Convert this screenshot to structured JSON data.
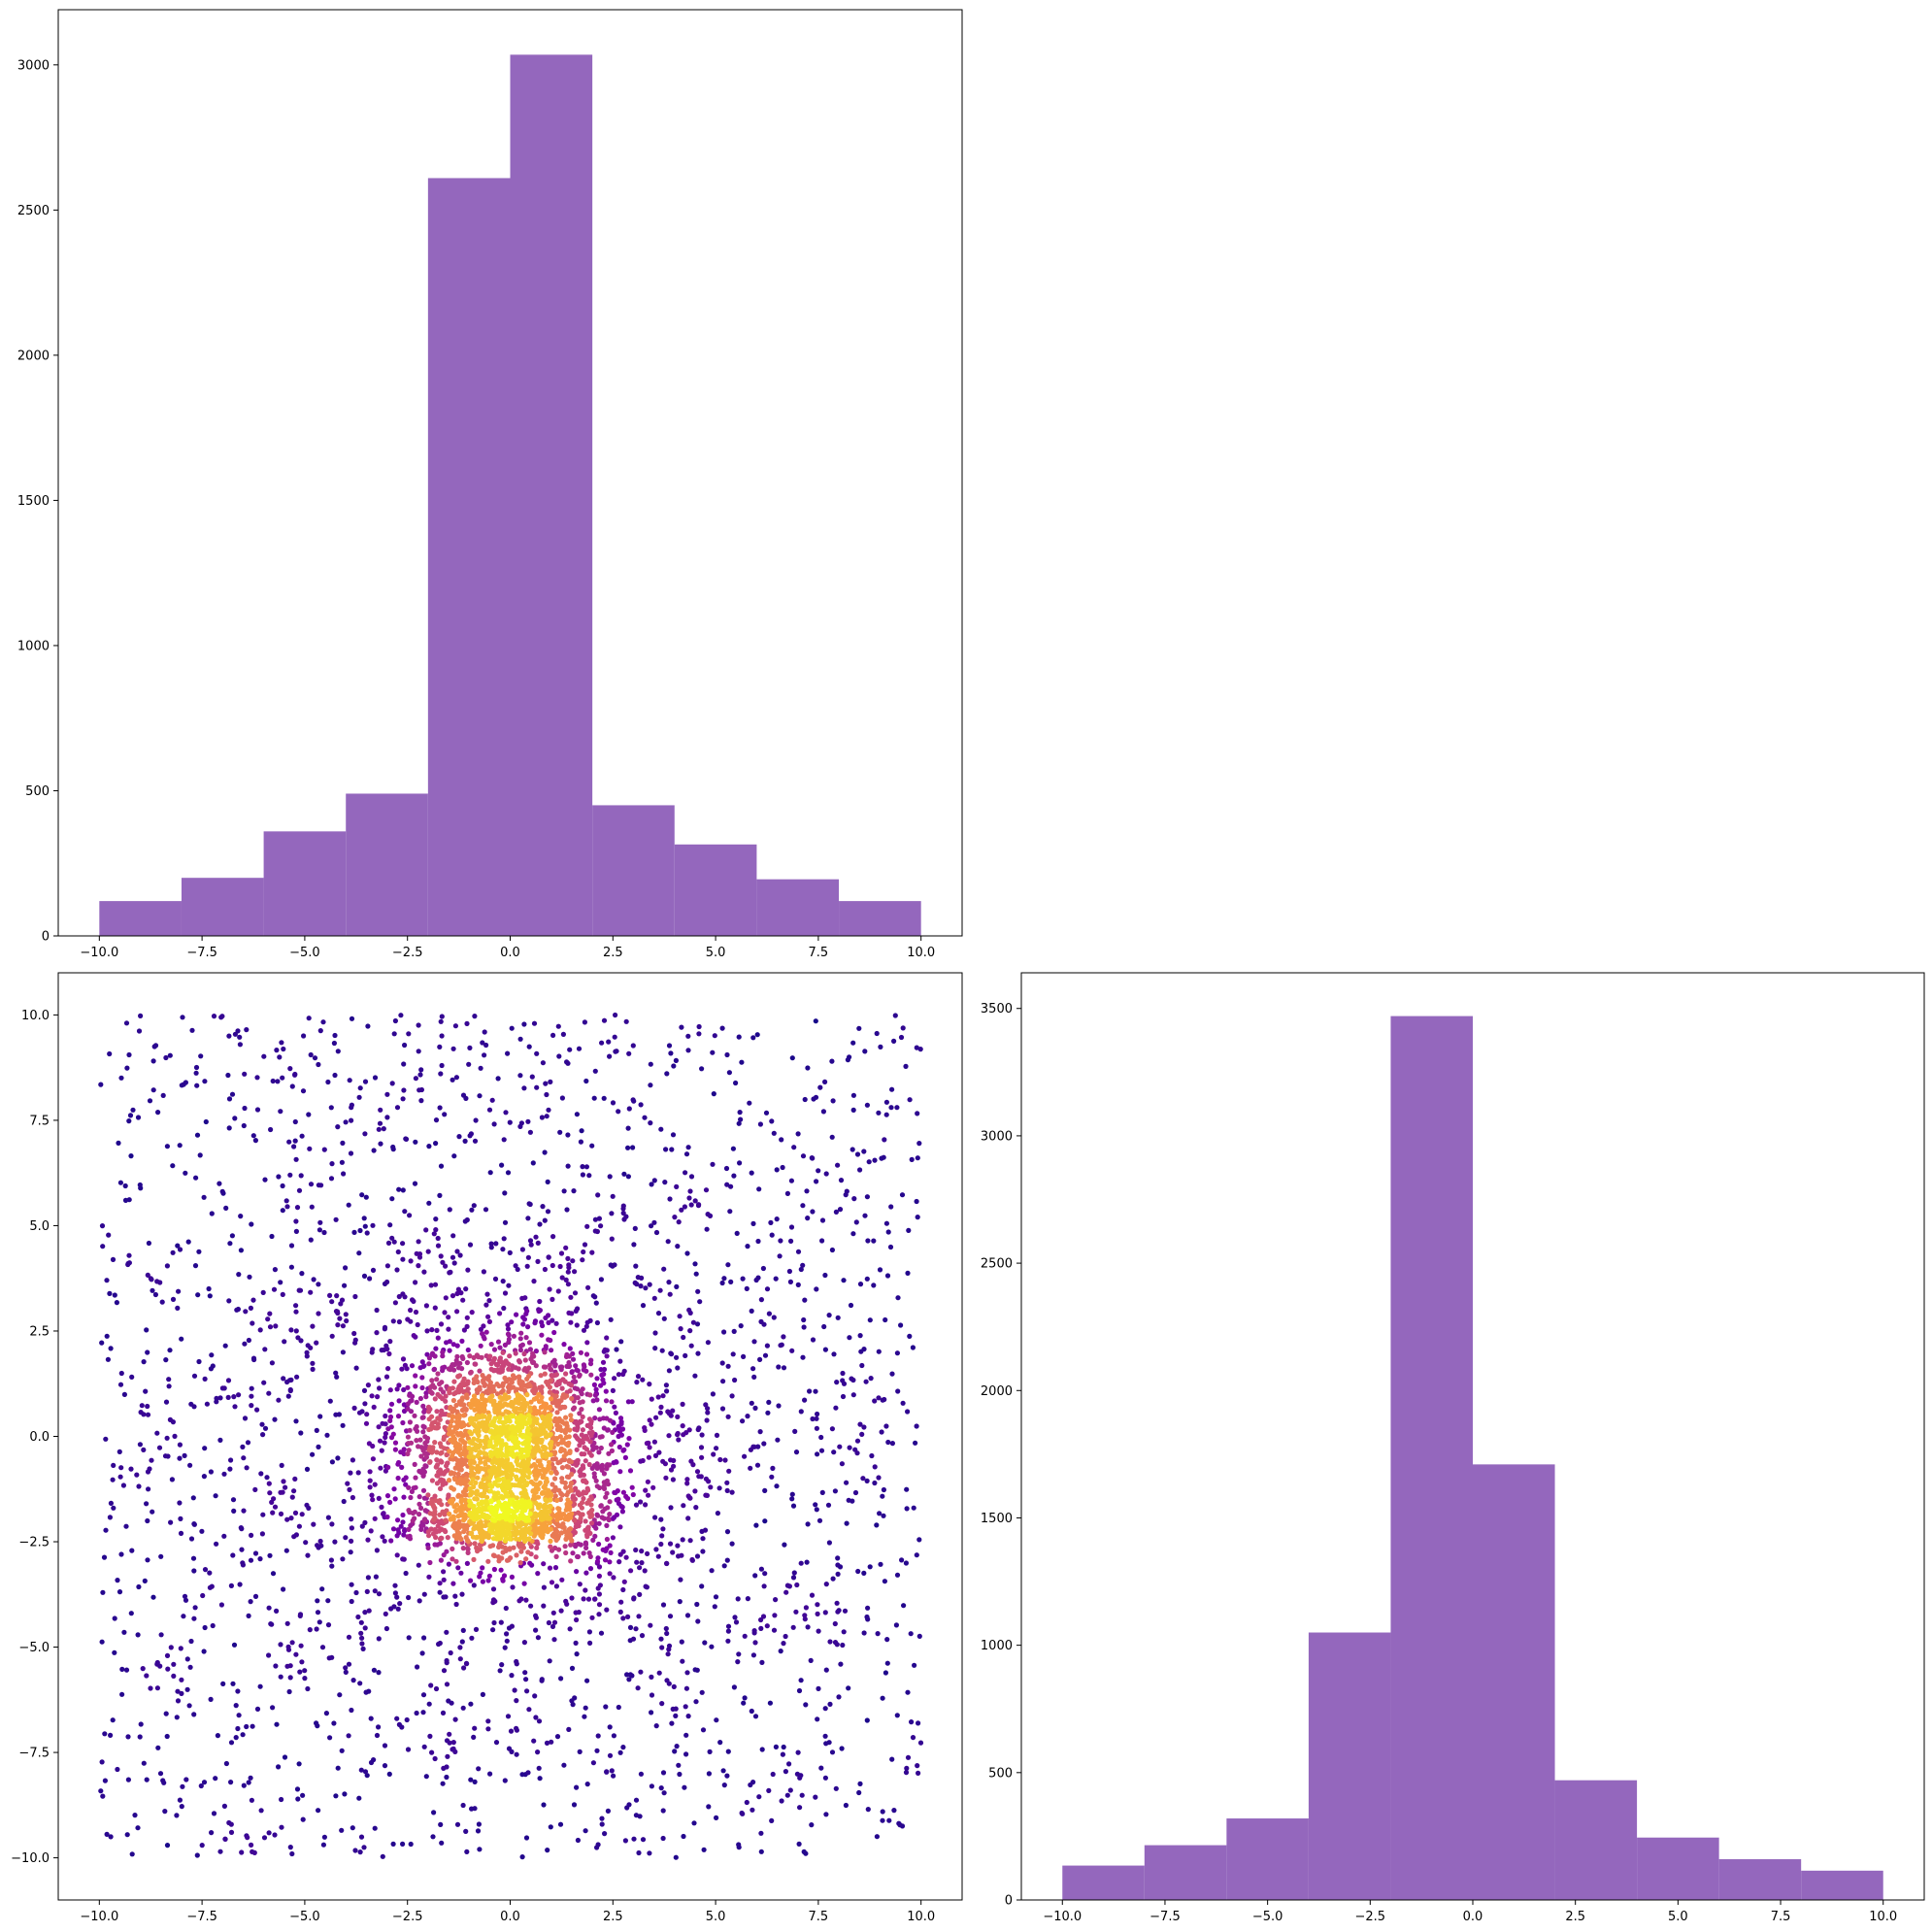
{
  "colors": {
    "bar_fill": "#9467bd",
    "axes_edge": "#000000",
    "background": "#ffffff",
    "scatter_colormap": "plasma"
  },
  "chart_data": [
    {
      "type": "bar",
      "name": "top-left-histogram",
      "bin_edges": [
        -10,
        -8,
        -6,
        -4,
        -2,
        0,
        2,
        4,
        6,
        8,
        10
      ],
      "values": [
        120,
        200,
        360,
        490,
        2610,
        3035,
        450,
        315,
        195,
        120
      ],
      "xlim": [
        -11,
        11
      ],
      "ylim": [
        0,
        3190
      ],
      "xticks": [
        -10.0,
        -7.5,
        -5.0,
        -2.5,
        0.0,
        2.5,
        5.0,
        7.5,
        10.0
      ],
      "xtick_labels": [
        "−10.0",
        "−7.5",
        "−5.0",
        "−2.5",
        "0.0",
        "2.5",
        "5.0",
        "7.5",
        "10.0"
      ],
      "yticks": [
        0,
        500,
        1000,
        1500,
        2000,
        2500,
        3000
      ],
      "ytick_labels": [
        "0",
        "500",
        "1000",
        "1500",
        "2000",
        "2500",
        "3000"
      ],
      "grid": false,
      "title": "",
      "xlabel": "",
      "ylabel": ""
    },
    {
      "type": "scatter",
      "name": "bottom-left-scatter",
      "description_of_points": "about 5000 points: uniform background over [-10,10]x[-10,10] plus a dense Gaussian cluster near (0,0) and a horizontal band near y=-2; colour = local density",
      "n_uniform": 1800,
      "clusters": [
        {
          "cx": 0,
          "cy": 0,
          "sx": 1.2,
          "sy": 1.2,
          "n": 1800
        },
        {
          "cx": 0,
          "cy": -2,
          "sx": 1.3,
          "sy": 0.35,
          "n": 600
        },
        {
          "cx": 0,
          "cy": -0.5,
          "sx": 3.5,
          "sy": 3.5,
          "n": 800
        }
      ],
      "xlim": [
        -11,
        11
      ],
      "ylim": [
        -11,
        11
      ],
      "xticks": [
        -10.0,
        -7.5,
        -5.0,
        -2.5,
        0.0,
        2.5,
        5.0,
        7.5,
        10.0
      ],
      "xtick_labels": [
        "−10.0",
        "−7.5",
        "−5.0",
        "−2.5",
        "0.0",
        "2.5",
        "5.0",
        "7.5",
        "10.0"
      ],
      "yticks": [
        -10.0,
        -7.5,
        -5.0,
        -2.5,
        0.0,
        2.5,
        5.0,
        7.5,
        10.0
      ],
      "ytick_labels": [
        "−10.0",
        "−7.5",
        "−5.0",
        "−2.5",
        "0.0",
        "2.5",
        "5.0",
        "7.5",
        "10.0"
      ],
      "grid": false,
      "title": "",
      "xlabel": "",
      "ylabel": ""
    },
    {
      "type": "bar",
      "name": "bottom-right-histogram",
      "bin_edges": [
        -10,
        -8,
        -6,
        -4,
        -2,
        0,
        2,
        4,
        6,
        8,
        10
      ],
      "values": [
        135,
        215,
        320,
        1050,
        3470,
        1710,
        470,
        245,
        160,
        115
      ],
      "xlim": [
        -11,
        11
      ],
      "ylim": [
        0,
        3640
      ],
      "xticks": [
        -10.0,
        -7.5,
        -5.0,
        -2.5,
        0.0,
        2.5,
        5.0,
        7.5,
        10.0
      ],
      "xtick_labels": [
        "−10.0",
        "−7.5",
        "−5.0",
        "−2.5",
        "0.0",
        "2.5",
        "5.0",
        "7.5",
        "10.0"
      ],
      "yticks": [
        0,
        500,
        1000,
        1500,
        2000,
        2500,
        3000,
        3500
      ],
      "ytick_labels": [
        "0",
        "500",
        "1000",
        "1500",
        "2000",
        "2500",
        "3000",
        "3500"
      ],
      "grid": false,
      "title": "",
      "xlabel": "",
      "ylabel": ""
    }
  ]
}
